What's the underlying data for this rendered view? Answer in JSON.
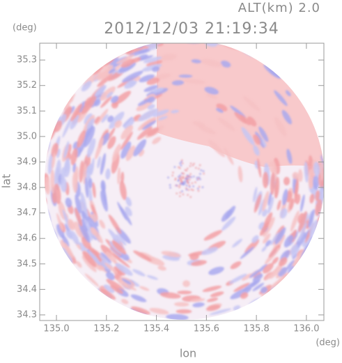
{
  "chart_data": {
    "type": "radar-map",
    "title": "2012/12/03 21:19:34",
    "subtitle": "ALT(km) 2.0",
    "x_label": "lon",
    "y_label": "lat",
    "x_unit": "(deg)",
    "y_unit": "(deg)",
    "xlim": [
      134.933,
      136.07
    ],
    "ylim": [
      34.278,
      35.366
    ],
    "xticks": [
      {
        "value": 135,
        "label": "135.0"
      },
      135.2,
      135.4,
      135.6,
      135.8,
      {
        "value": 136,
        "label": "136.0"
      }
    ],
    "yticks": [
      34.3,
      34.4,
      34.5,
      34.6,
      34.7,
      34.8,
      34.9,
      {
        "value": 35,
        "label": "35.0"
      },
      35.1,
      35.2,
      35.3
    ]
  }
}
